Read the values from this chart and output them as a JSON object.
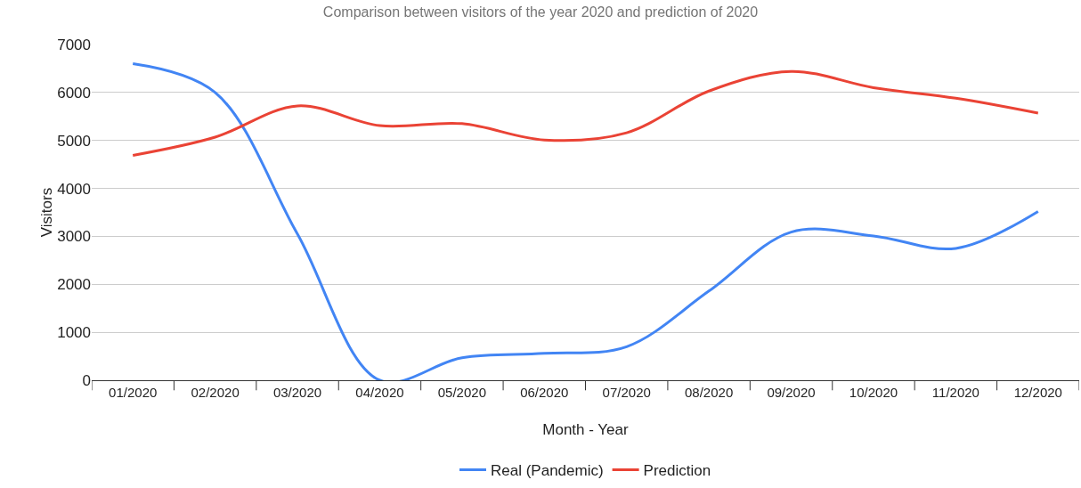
{
  "chart_data": {
    "type": "line",
    "title": "Comparison between visitors of the year 2020 and prediction of 2020",
    "xlabel": "Month - Year",
    "ylabel": "Visitors",
    "categories": [
      "01/2020",
      "02/2020",
      "03/2020",
      "04/2020",
      "05/2020",
      "06/2020",
      "07/2020",
      "08/2020",
      "09/2020",
      "10/2020",
      "11/2020",
      "12/2020"
    ],
    "series": [
      {
        "name": "Real (Pandemic)",
        "color": "#4285f4",
        "values": [
          6600,
          6000,
          3050,
          0,
          470,
          560,
          700,
          1860,
          3090,
          3010,
          2750,
          3520
        ]
      },
      {
        "name": "Prediction",
        "color": "#ea4335",
        "values": [
          4690,
          5070,
          5720,
          5310,
          5350,
          5010,
          5160,
          6030,
          6440,
          6100,
          5880,
          5570
        ]
      }
    ],
    "ylim": [
      0,
      7000
    ],
    "yticks": [
      0,
      1000,
      2000,
      3000,
      4000,
      5000,
      6000,
      7000
    ],
    "grid": "y",
    "legend": "bottom",
    "marker": "none",
    "line_style": "solid"
  }
}
